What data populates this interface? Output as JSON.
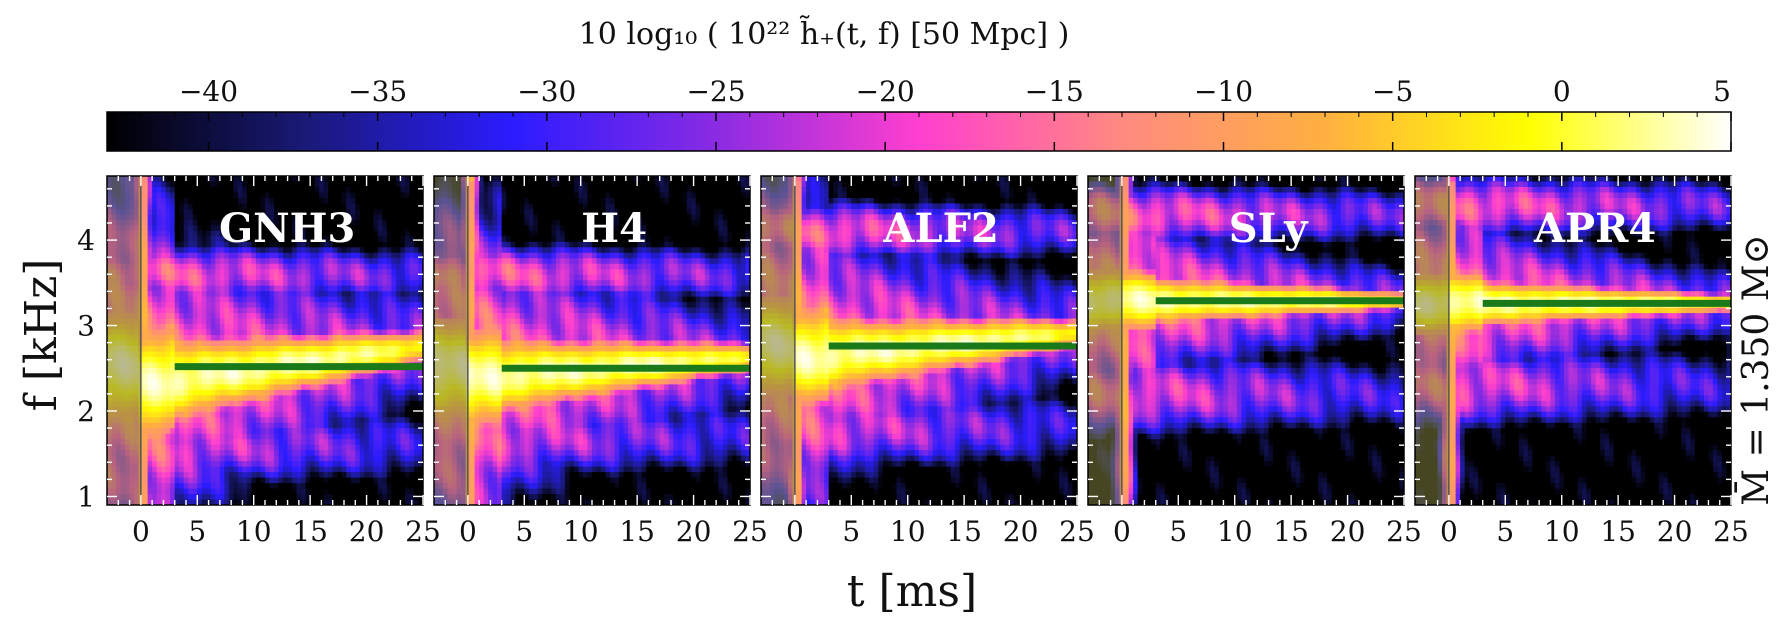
{
  "chart_data": {
    "type": "heatmap",
    "colorbar": {
      "label": "10 log₁₀ ( 10²² h̃₊(t, f)  [50 Mpc] )",
      "range": [
        -43,
        5
      ],
      "ticks": [
        -40,
        -35,
        -30,
        -25,
        -20,
        -15,
        -10,
        -5,
        0,
        5
      ],
      "tick_labels": [
        "−40",
        "−35",
        "−30",
        "−25",
        "−20",
        "−15",
        "−10",
        "−5",
        "0",
        "5"
      ],
      "colors": [
        "#000000",
        "#1a1a7a",
        "#2b1cff",
        "#8a2be2",
        "#ff3fcf",
        "#ff8a80",
        "#ffb040",
        "#ffff00",
        "#ffffff"
      ]
    },
    "xlabel": "t [ms]",
    "ylabel": "f [kHz]",
    "xlim": [
      -3,
      25
    ],
    "ylim": [
      0.9,
      4.75
    ],
    "x_ticks": [
      0,
      5,
      10,
      15,
      20,
      25
    ],
    "x_tick_labels": [
      "0",
      "5",
      "10",
      "15",
      "20",
      "25"
    ],
    "y_ticks": [
      1,
      2,
      3,
      4
    ],
    "y_tick_labels": [
      "1",
      "2",
      "3",
      "4"
    ],
    "side_label": "M̄ = 1.350 M⊙",
    "line_color": "#1a7a1a",
    "panels": [
      {
        "name": "GNH3",
        "peak_frequency_khz": 2.52,
        "line_t": [
          3,
          25
        ],
        "ridge_slope": 0.018,
        "upper_band_khz": 3.6,
        "lower_band_khz": 1.6,
        "spread": 1.0
      },
      {
        "name": "H4",
        "peak_frequency_khz": 2.5,
        "line_t": [
          3,
          25
        ],
        "ridge_slope": 0.01,
        "upper_band_khz": 3.6,
        "lower_band_khz": 1.7,
        "spread": 0.9
      },
      {
        "name": "ALF2",
        "peak_frequency_khz": 2.76,
        "line_t": [
          3,
          25
        ],
        "ridge_slope": 0.012,
        "upper_band_khz": 4.1,
        "lower_band_khz": 1.8,
        "spread": 0.9
      },
      {
        "name": "SLy",
        "peak_frequency_khz": 3.29,
        "line_t": [
          3,
          25
        ],
        "ridge_slope": 0.0,
        "upper_band_khz": 4.3,
        "lower_band_khz": 2.2,
        "spread": 0.55
      },
      {
        "name": "APR4",
        "peak_frequency_khz": 3.26,
        "line_t": [
          3,
          25
        ],
        "ridge_slope": 0.0,
        "upper_band_khz": 4.4,
        "lower_band_khz": 2.3,
        "spread": 0.55
      }
    ]
  }
}
